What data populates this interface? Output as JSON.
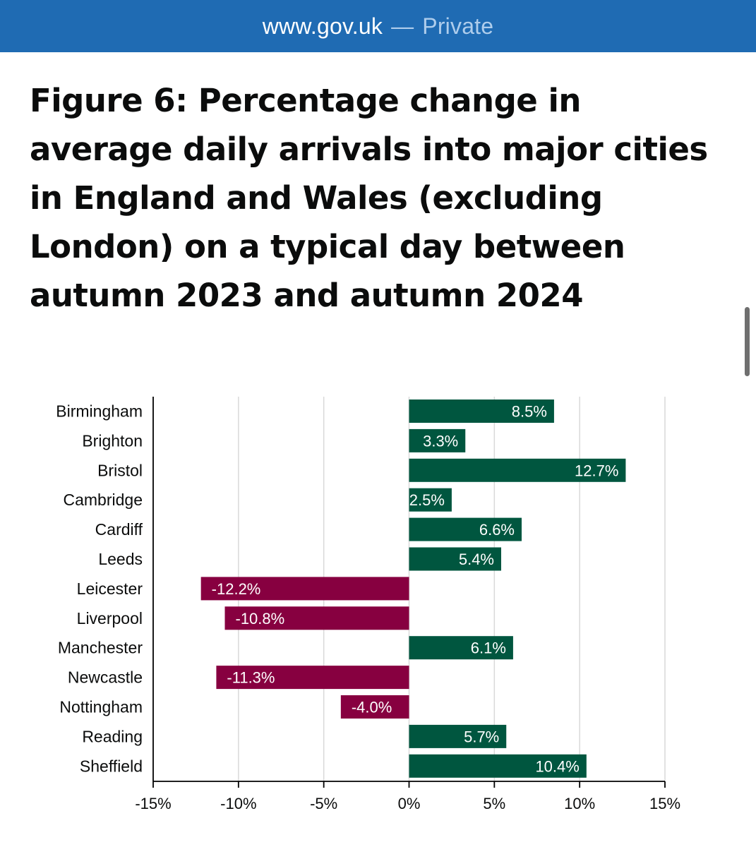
{
  "browser": {
    "url": "www.gov.uk",
    "separator": "—",
    "mode": "Private"
  },
  "page": {
    "title": "Figure 6: Percentage change in average daily arrivals into major cities in England and Wales (excluding London) on a typical day between autumn 2023 and autumn 2024"
  },
  "chart_data": {
    "type": "bar",
    "orientation": "horizontal",
    "title": "",
    "xlabel": "",
    "ylabel": "",
    "categories": [
      "Birmingham",
      "Brighton",
      "Bristol",
      "Cambridge",
      "Cardiff",
      "Leeds",
      "Leicester",
      "Liverpool",
      "Manchester",
      "Newcastle",
      "Nottingham",
      "Reading",
      "Sheffield"
    ],
    "values": [
      8.5,
      3.3,
      12.7,
      2.5,
      6.6,
      5.4,
      -12.2,
      -10.8,
      6.1,
      -11.3,
      -4.0,
      5.7,
      10.4
    ],
    "data_labels": [
      "8.5%",
      "3.3%",
      "12.7%",
      "2.5%",
      "6.6%",
      "5.4%",
      "-12.2%",
      "-10.8%",
      "6.1%",
      "-11.3%",
      "-4.0%",
      "5.7%",
      "10.4%"
    ],
    "xlim": [
      -15,
      15
    ],
    "xticks": [
      -15,
      -10,
      -5,
      0,
      5,
      10,
      15
    ],
    "xtick_labels": [
      "-15%",
      "-10%",
      "-5%",
      "0%",
      "5%",
      "10%",
      "15%"
    ],
    "grid": true,
    "legend": "none",
    "colors": {
      "positive": "#00563f",
      "negative": "#870040",
      "grid": "#d9d9d9",
      "axis": "#000000",
      "label_text": "#ffffff",
      "category_text": "#0b0c0c"
    }
  }
}
